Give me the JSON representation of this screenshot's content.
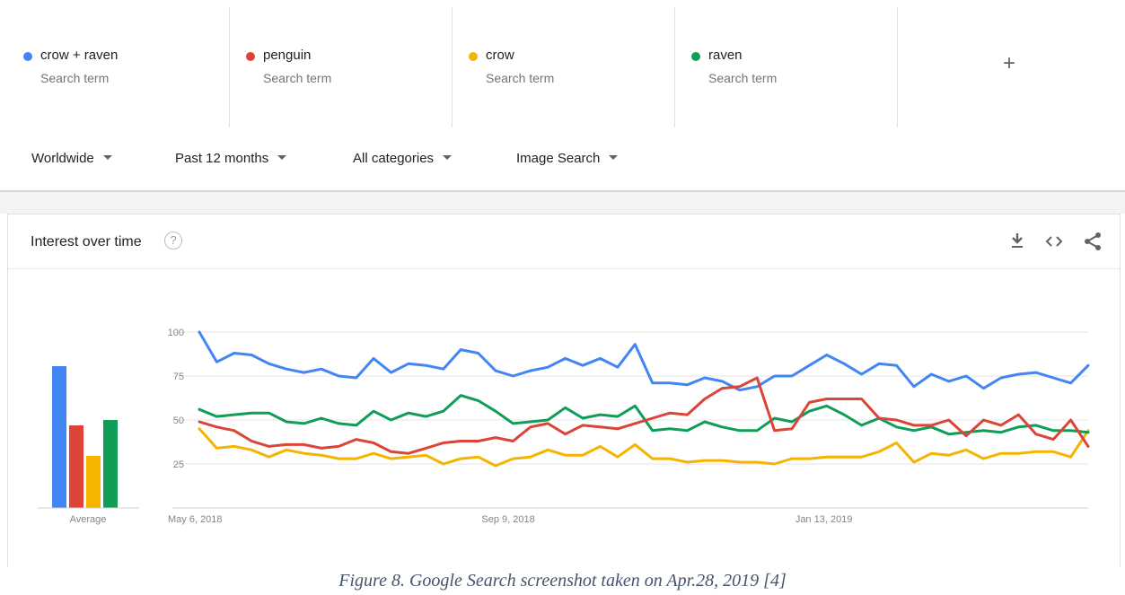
{
  "terms": [
    {
      "name": "crow + raven",
      "sub": "Search term",
      "color": "#4285f4"
    },
    {
      "name": "penguin",
      "sub": "Search term",
      "color": "#db4437"
    },
    {
      "name": "crow",
      "sub": "Search term",
      "color": "#f4b400"
    },
    {
      "name": "raven",
      "sub": "Search term",
      "color": "#0f9d58"
    }
  ],
  "add_term_label": "+",
  "filters": {
    "region": "Worldwide",
    "period": "Past 12 months",
    "category": "All categories",
    "search_type": "Image Search"
  },
  "card": {
    "title": "Interest over time",
    "help_glyph": "?",
    "tools": [
      "download-icon",
      "embed-icon",
      "share-icon"
    ]
  },
  "chart_data": {
    "type": "line",
    "y_ticks": [
      100,
      75,
      50,
      25
    ],
    "ylim": [
      0,
      100
    ],
    "x_tick_labels": [
      "May 6, 2018",
      "Sep 9, 2018",
      "Jan 13, 2019"
    ],
    "average_label": "Average",
    "series": [
      {
        "color": "#4285f4",
        "average": 79,
        "values": [
          100,
          83,
          88,
          87,
          82,
          79,
          77,
          79,
          75,
          74,
          85,
          77,
          82,
          81,
          79,
          90,
          88,
          78,
          75,
          78,
          80,
          85,
          81,
          85,
          80,
          93,
          71,
          71,
          70,
          74,
          72,
          67,
          69,
          75,
          75,
          81,
          87,
          82,
          76,
          82,
          81,
          69,
          76,
          72,
          75,
          68,
          74,
          76,
          77,
          74,
          71,
          81
        ]
      },
      {
        "color": "#db4437",
        "average": 46,
        "values": [
          49,
          46,
          44,
          38,
          35,
          36,
          36,
          34,
          35,
          39,
          37,
          32,
          31,
          34,
          37,
          38,
          38,
          40,
          38,
          46,
          48,
          42,
          47,
          46,
          45,
          48,
          51,
          54,
          53,
          62,
          68,
          69,
          74,
          44,
          45,
          60,
          62,
          62,
          62,
          51,
          50,
          47,
          47,
          50,
          41,
          50,
          47,
          53,
          42,
          39,
          50,
          35
        ]
      },
      {
        "color": "#f4b400",
        "average": 29,
        "values": [
          45,
          34,
          35,
          33,
          29,
          33,
          31,
          30,
          28,
          28,
          31,
          28,
          29,
          30,
          25,
          28,
          29,
          24,
          28,
          29,
          33,
          30,
          30,
          35,
          29,
          36,
          28,
          28,
          26,
          27,
          27,
          26,
          26,
          25,
          28,
          28,
          29,
          29,
          29,
          32,
          37,
          26,
          31,
          30,
          33,
          28,
          31,
          31,
          32,
          32,
          29,
          44
        ]
      },
      {
        "color": "#0f9d58",
        "average": 49,
        "values": [
          56,
          52,
          53,
          54,
          54,
          49,
          48,
          51,
          48,
          47,
          55,
          50,
          54,
          52,
          55,
          64,
          61,
          55,
          48,
          49,
          50,
          57,
          51,
          53,
          52,
          58,
          44,
          45,
          44,
          49,
          46,
          44,
          44,
          51,
          49,
          55,
          58,
          53,
          47,
          51,
          46,
          44,
          46,
          42,
          43,
          44,
          43,
          46,
          47,
          44,
          44,
          43
        ]
      }
    ]
  },
  "caption": "Figure 8. Google Search screenshot taken on Apr.28, 2019 [4]"
}
